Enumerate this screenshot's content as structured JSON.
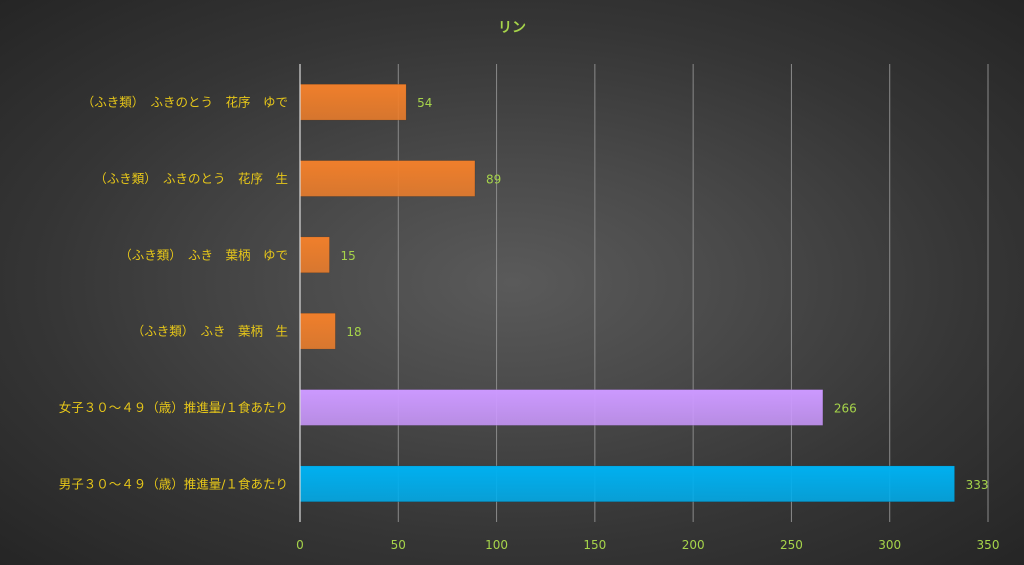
{
  "colors": {
    "label_text": "#e6c619",
    "tick_text": "#a6d44a",
    "data_label_text": "#a6d44a",
    "title_text": "#a6d44a",
    "gridline": "#8a8a8a",
    "axis_line": "#d9d9d9",
    "bar_orange": "#f07f2b",
    "bar_purple": "#cc99ff",
    "bar_cyan": "#00b0f0"
  },
  "chart_data": {
    "type": "bar",
    "orientation": "horizontal",
    "title": "リン",
    "xlabel": "",
    "ylabel": "",
    "xlim": [
      0,
      350
    ],
    "x_ticks": [
      0,
      50,
      100,
      150,
      200,
      250,
      300,
      350
    ],
    "grid": true,
    "legend": "none",
    "categories": [
      "（ふき類）　ふきのとう　花序　ゆで",
      "（ふき類）　ふきのとう　花序　生",
      "（ふき類）　ふき　葉柄　ゆで",
      "（ふき類）　ふき　葉柄　生",
      "女子３０～４９（歳）推進量/１食あたり",
      "男子３０～４９（歳）推進量/１食あたり"
    ],
    "values": [
      54,
      89,
      15,
      18,
      266,
      333
    ],
    "bar_colors": [
      "orange",
      "orange",
      "orange",
      "orange",
      "purple",
      "cyan"
    ]
  }
}
